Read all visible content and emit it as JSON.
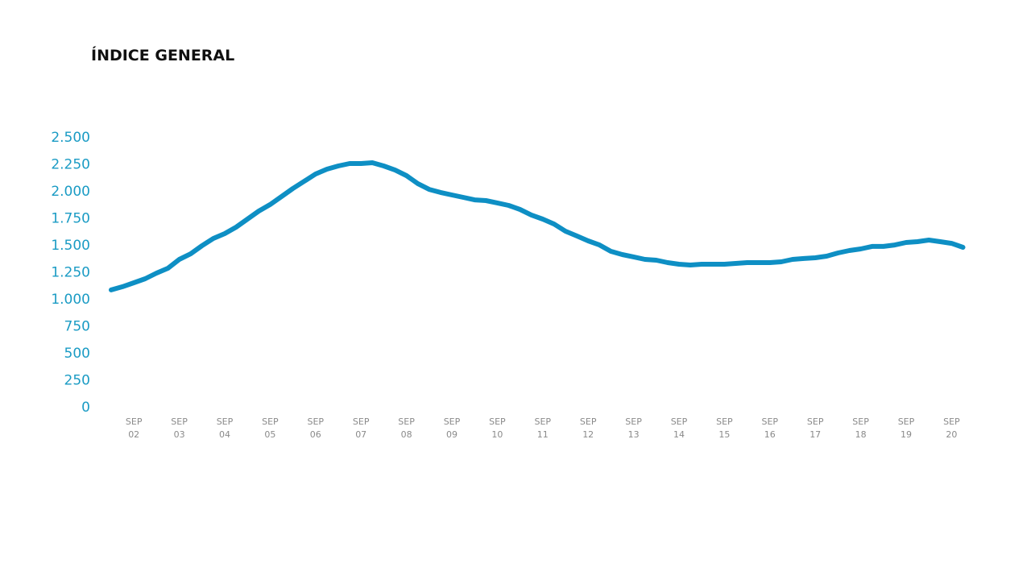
{
  "chart_data": {
    "type": "line",
    "title": "ÍNDICE GENERAL",
    "categories": [
      null,
      null,
      "SEP 02",
      null,
      null,
      null,
      "SEP 03",
      null,
      null,
      null,
      "SEP 04",
      null,
      null,
      null,
      "SEP 05",
      null,
      null,
      null,
      "SEP 06",
      null,
      null,
      null,
      "SEP 07",
      null,
      null,
      null,
      "SEP 08",
      null,
      null,
      null,
      "SEP 09",
      null,
      null,
      null,
      "SEP 10",
      null,
      null,
      null,
      "SEP 11",
      null,
      null,
      null,
      "SEP 12",
      null,
      null,
      null,
      "SEP 13",
      null,
      null,
      null,
      "SEP 14",
      null,
      null,
      null,
      "SEP 15",
      null,
      null,
      null,
      "SEP 16",
      null,
      null,
      null,
      "SEP 17",
      null,
      null,
      null,
      "SEP 18",
      null,
      null,
      null,
      "SEP 19",
      null,
      null,
      null,
      "SEP 20",
      null
    ],
    "values": [
      1090,
      1120,
      1157,
      1194,
      1246,
      1291,
      1373,
      1425,
      1500,
      1567,
      1612,
      1672,
      1746,
      1821,
      1881,
      1955,
      2030,
      2097,
      2164,
      2209,
      2239,
      2261,
      2261,
      2269,
      2239,
      2201,
      2149,
      2075,
      2022,
      1993,
      1970,
      1948,
      1925,
      1918,
      1896,
      1873,
      1836,
      1784,
      1746,
      1701,
      1634,
      1590,
      1545,
      1507,
      1448,
      1418,
      1396,
      1373,
      1366,
      1343,
      1328,
      1321,
      1328,
      1328,
      1328,
      1336,
      1343,
      1343,
      1343,
      1351,
      1373,
      1381,
      1388,
      1403,
      1433,
      1455,
      1470,
      1493,
      1493,
      1507,
      1530,
      1537,
      1552,
      1537,
      1522,
      1485
    ],
    "color": "#0e8fc4",
    "ylim": [
      0,
      2500
    ],
    "yticks": [
      0,
      250,
      500,
      750,
      {
        "value": 1000,
        "label": "1.000"
      },
      {
        "value": 1250,
        "label": "1.250"
      },
      {
        "value": 1500,
        "label": "1.500"
      },
      {
        "value": 1750,
        "label": "1.750"
      },
      {
        "value": 2000,
        "label": "2.000"
      },
      {
        "value": 2250,
        "label": "2.250"
      },
      {
        "value": 2500,
        "label": "2.500"
      }
    ],
    "grid": false
  }
}
